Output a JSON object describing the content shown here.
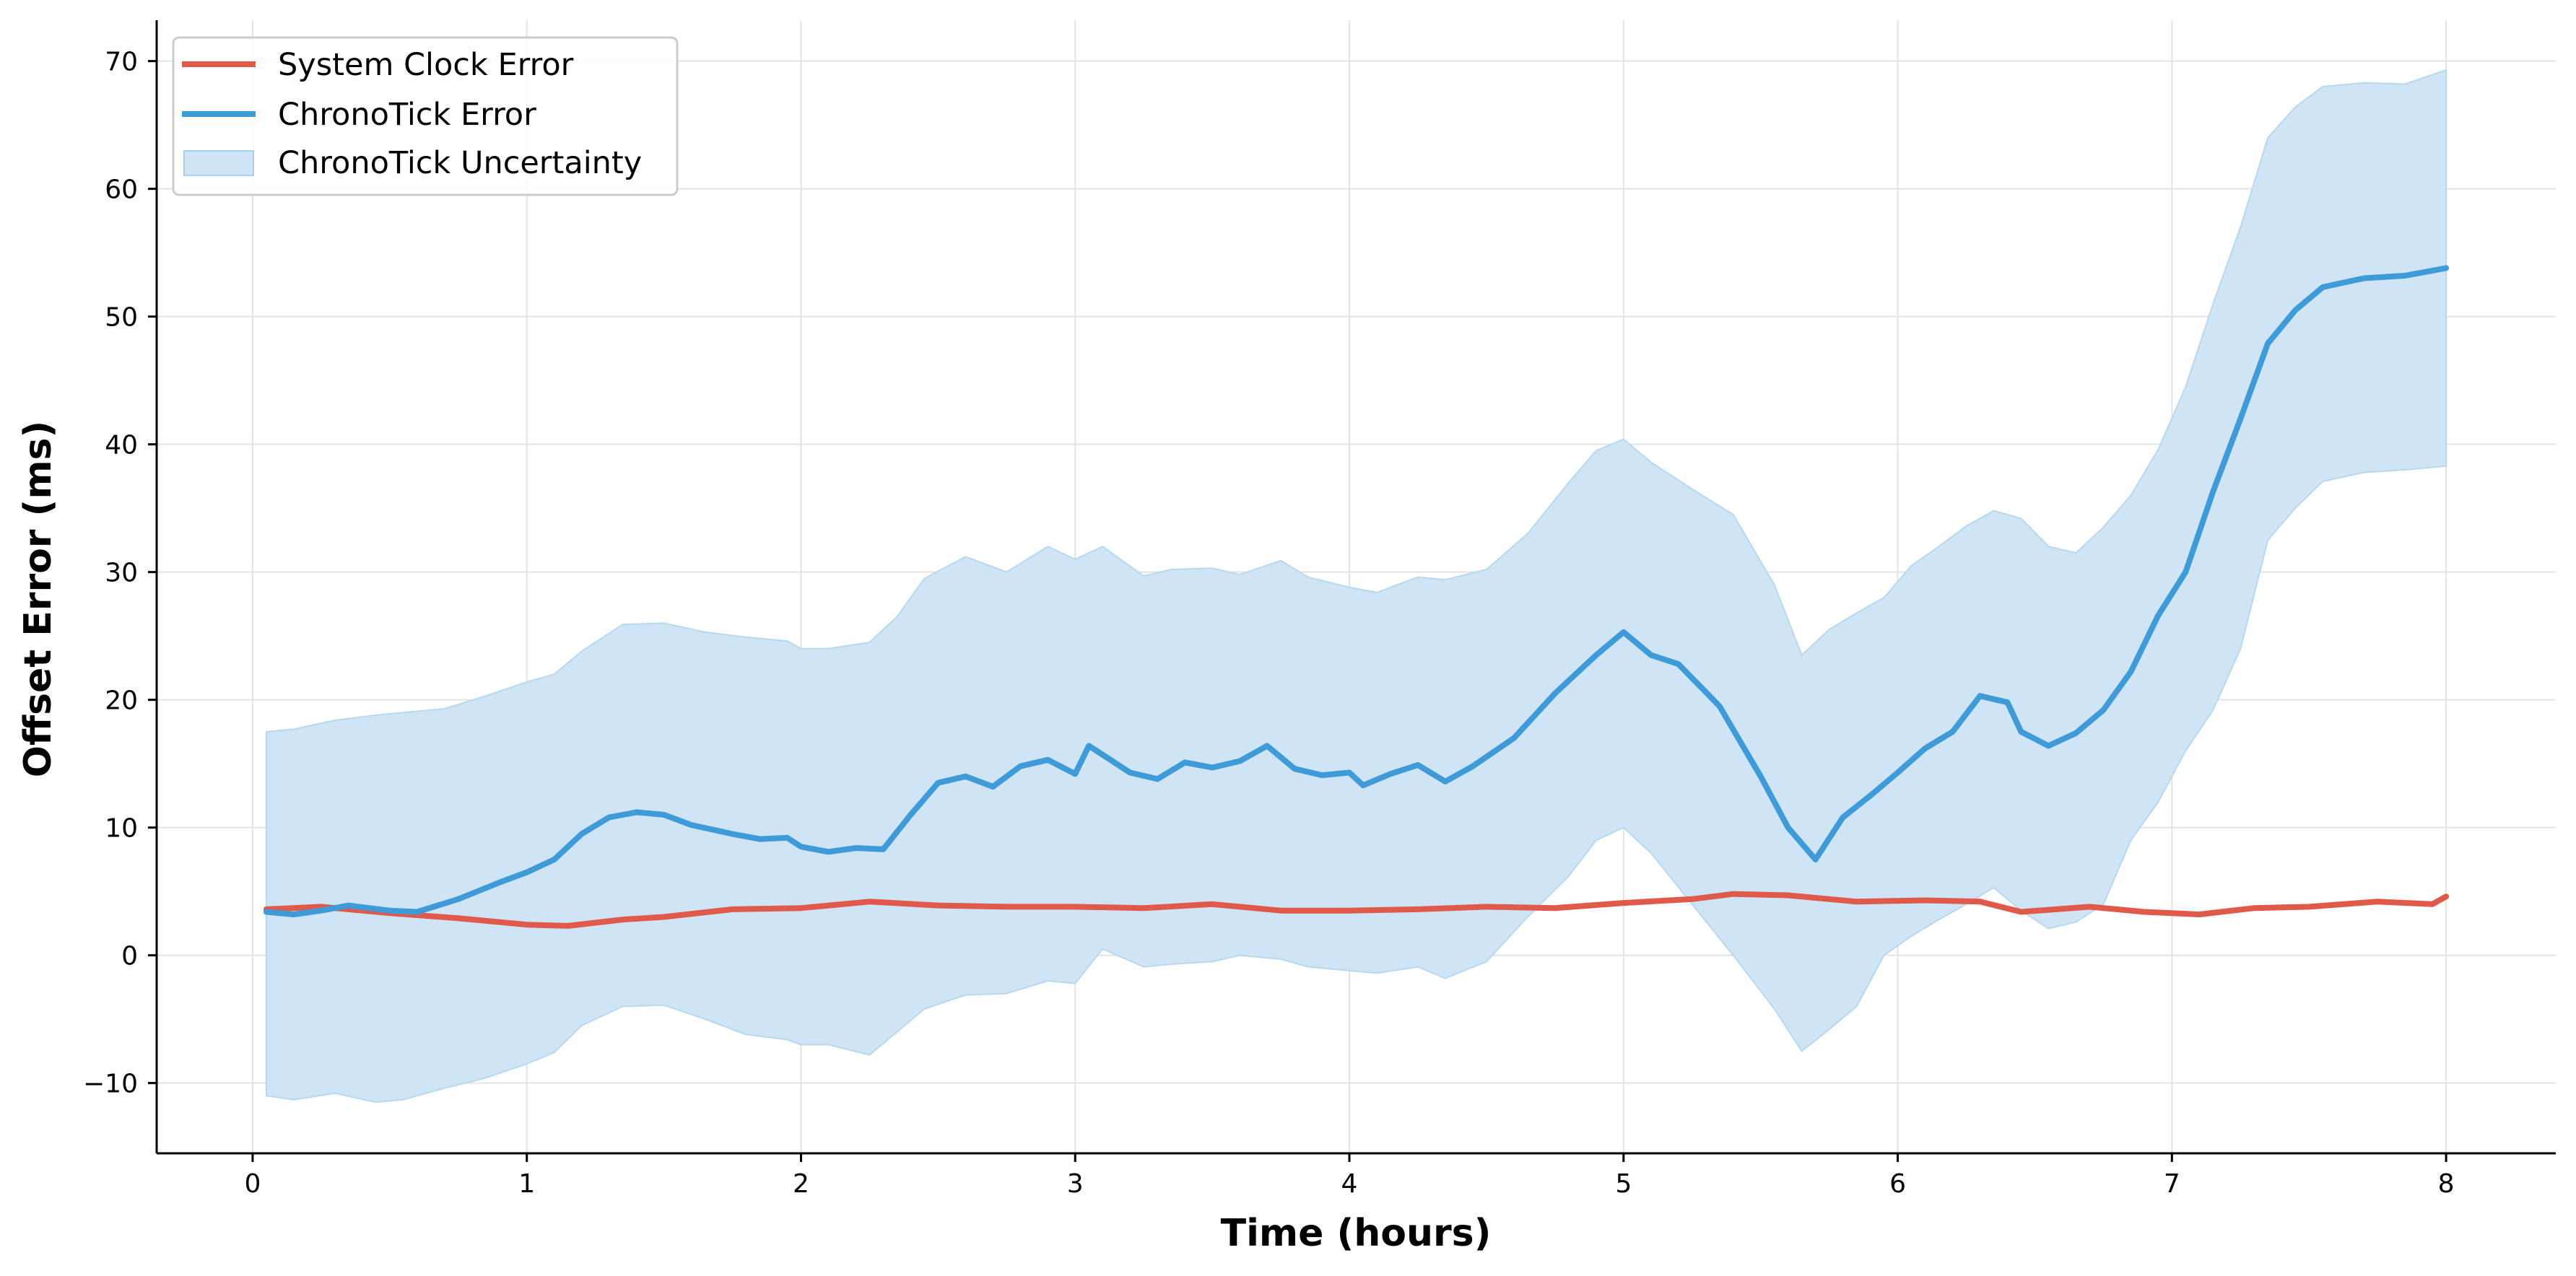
{
  "chart_data": {
    "type": "line",
    "title": "",
    "xlabel": "Time (hours)",
    "ylabel": "Offset Error (ms)",
    "xlim": [
      -0.35,
      8.4
    ],
    "ylim": [
      -15.5,
      73.2
    ],
    "x_ticks": [
      0,
      1,
      2,
      3,
      4,
      5,
      6,
      7,
      8
    ],
    "x_tick_labels": [
      "0",
      "1",
      "2",
      "3",
      "4",
      "5",
      "6",
      "7",
      "8"
    ],
    "y_ticks": [
      -10,
      0,
      10,
      20,
      30,
      40,
      50,
      60,
      70
    ],
    "y_tick_labels": [
      "−10",
      "0",
      "10",
      "20",
      "30",
      "40",
      "50",
      "60",
      "70"
    ],
    "grid": true,
    "legend_position": "upper-left",
    "legend": [
      "System Clock Error",
      "ChronoTick Error",
      "ChronoTick Uncertainty"
    ],
    "colors": {
      "system_clock": "#e05a4b",
      "chronotick": "#3e9bd8",
      "uncertainty_fill": "#cfe5f5",
      "grid": "#e3e3e3"
    },
    "series": [
      {
        "name": "System Clock Error",
        "kind": "line",
        "x": [
          0.05,
          0.25,
          0.5,
          0.75,
          1.0,
          1.15,
          1.35,
          1.5,
          1.75,
          2.0,
          2.25,
          2.5,
          2.75,
          3.0,
          3.25,
          3.5,
          3.75,
          4.0,
          4.25,
          4.5,
          4.75,
          5.0,
          5.25,
          5.4,
          5.6,
          5.85,
          6.1,
          6.3,
          6.45,
          6.7,
          6.9,
          7.1,
          7.3,
          7.5,
          7.75,
          7.95,
          8.0
        ],
        "y": [
          3.6,
          3.8,
          3.3,
          2.9,
          2.4,
          2.3,
          2.8,
          3.0,
          3.6,
          3.7,
          4.2,
          3.9,
          3.8,
          3.8,
          3.7,
          4.0,
          3.5,
          3.5,
          3.6,
          3.8,
          3.7,
          4.1,
          4.4,
          4.8,
          4.7,
          4.2,
          4.3,
          4.2,
          3.4,
          3.8,
          3.4,
          3.2,
          3.7,
          3.8,
          4.2,
          4.0,
          4.6
        ]
      },
      {
        "name": "ChronoTick Error",
        "kind": "line",
        "x": [
          0.05,
          0.15,
          0.25,
          0.35,
          0.5,
          0.6,
          0.75,
          0.9,
          1.0,
          1.1,
          1.2,
          1.3,
          1.4,
          1.5,
          1.6,
          1.75,
          1.85,
          1.95,
          2.0,
          2.1,
          2.2,
          2.3,
          2.4,
          2.5,
          2.6,
          2.7,
          2.8,
          2.9,
          3.0,
          3.05,
          3.2,
          3.3,
          3.4,
          3.5,
          3.6,
          3.7,
          3.8,
          3.9,
          4.0,
          4.05,
          4.15,
          4.25,
          4.35,
          4.45,
          4.6,
          4.75,
          4.9,
          5.0,
          5.1,
          5.2,
          5.35,
          5.5,
          5.6,
          5.7,
          5.8,
          5.9,
          6.0,
          6.1,
          6.2,
          6.3,
          6.4,
          6.45,
          6.55,
          6.65,
          6.75,
          6.85,
          6.95,
          7.05,
          7.15,
          7.25,
          7.35,
          7.45,
          7.55,
          7.7,
          7.85,
          8.0
        ],
        "y": [
          3.4,
          3.2,
          3.5,
          3.9,
          3.5,
          3.4,
          4.4,
          5.7,
          6.5,
          7.5,
          9.5,
          10.8,
          11.2,
          11.0,
          10.2,
          9.5,
          9.1,
          9.2,
          8.5,
          8.1,
          8.4,
          8.3,
          11.0,
          13.5,
          14.0,
          13.2,
          14.8,
          15.3,
          14.2,
          16.4,
          14.3,
          13.8,
          15.1,
          14.7,
          15.2,
          16.4,
          14.6,
          14.1,
          14.3,
          13.3,
          14.2,
          14.9,
          13.6,
          14.8,
          17.0,
          20.5,
          23.5,
          25.3,
          23.5,
          22.8,
          19.5,
          14.0,
          10.0,
          7.5,
          10.8,
          12.5,
          14.3,
          16.2,
          17.5,
          20.3,
          19.8,
          17.5,
          16.4,
          17.4,
          19.2,
          22.2,
          26.6,
          30.0,
          36.3,
          42.0,
          47.9,
          50.5,
          52.3,
          53.0,
          53.2,
          53.8
        ]
      },
      {
        "name": "ChronoTick Uncertainty",
        "kind": "band",
        "x": [
          0.05,
          0.15,
          0.3,
          0.45,
          0.55,
          0.7,
          0.85,
          1.0,
          1.1,
          1.2,
          1.35,
          1.5,
          1.65,
          1.8,
          1.95,
          2.0,
          2.1,
          2.25,
          2.35,
          2.45,
          2.6,
          2.75,
          2.9,
          3.0,
          3.1,
          3.25,
          3.35,
          3.5,
          3.6,
          3.75,
          3.85,
          4.0,
          4.1,
          4.25,
          4.35,
          4.5,
          4.65,
          4.8,
          4.9,
          5.0,
          5.1,
          5.25,
          5.4,
          5.55,
          5.65,
          5.75,
          5.85,
          5.95,
          6.05,
          6.15,
          6.25,
          6.35,
          6.45,
          6.55,
          6.65,
          6.75,
          6.85,
          6.95,
          7.05,
          7.15,
          7.25,
          7.35,
          7.45,
          7.55,
          7.7,
          7.85,
          8.0
        ],
        "lower": [
          -11.0,
          -11.3,
          -10.8,
          -11.5,
          -11.3,
          -10.4,
          -9.6,
          -8.5,
          -7.6,
          -5.5,
          -4.0,
          -3.9,
          -5.0,
          -6.2,
          -6.6,
          -7.0,
          -7.0,
          -7.8,
          -6.0,
          -4.2,
          -3.1,
          -3.0,
          -2.0,
          -2.2,
          0.5,
          -0.9,
          -0.7,
          -0.5,
          0.0,
          -0.3,
          -0.9,
          -1.2,
          -1.4,
          -0.9,
          -1.8,
          -0.5,
          3.0,
          6.2,
          9.0,
          10.0,
          8.0,
          4.0,
          0.0,
          -4.2,
          -7.5,
          -5.8,
          -4.0,
          0.0,
          1.5,
          2.8,
          4.0,
          5.3,
          3.5,
          2.1,
          2.6,
          4.0,
          9.0,
          12.0,
          16.0,
          19.2,
          24.0,
          32.5,
          35.0,
          37.1,
          37.8,
          38.0,
          38.3
        ],
        "upper": [
          17.5,
          17.7,
          18.4,
          18.8,
          19.0,
          19.3,
          20.3,
          21.4,
          22.0,
          23.8,
          25.9,
          26.0,
          25.3,
          24.9,
          24.6,
          24.0,
          24.0,
          24.5,
          26.5,
          29.5,
          31.2,
          30.0,
          32.0,
          31.0,
          32.0,
          29.7,
          30.2,
          30.3,
          29.8,
          30.9,
          29.6,
          28.8,
          28.4,
          29.6,
          29.4,
          30.2,
          33.0,
          37.0,
          39.5,
          40.4,
          38.6,
          36.5,
          34.5,
          29.0,
          23.5,
          25.5,
          26.8,
          28.0,
          30.5,
          32.0,
          33.6,
          34.8,
          34.2,
          32.0,
          31.5,
          33.5,
          36.0,
          39.6,
          44.5,
          51.0,
          57.0,
          64.0,
          66.4,
          68.0,
          68.3,
          68.2,
          69.3
        ]
      }
    ]
  }
}
